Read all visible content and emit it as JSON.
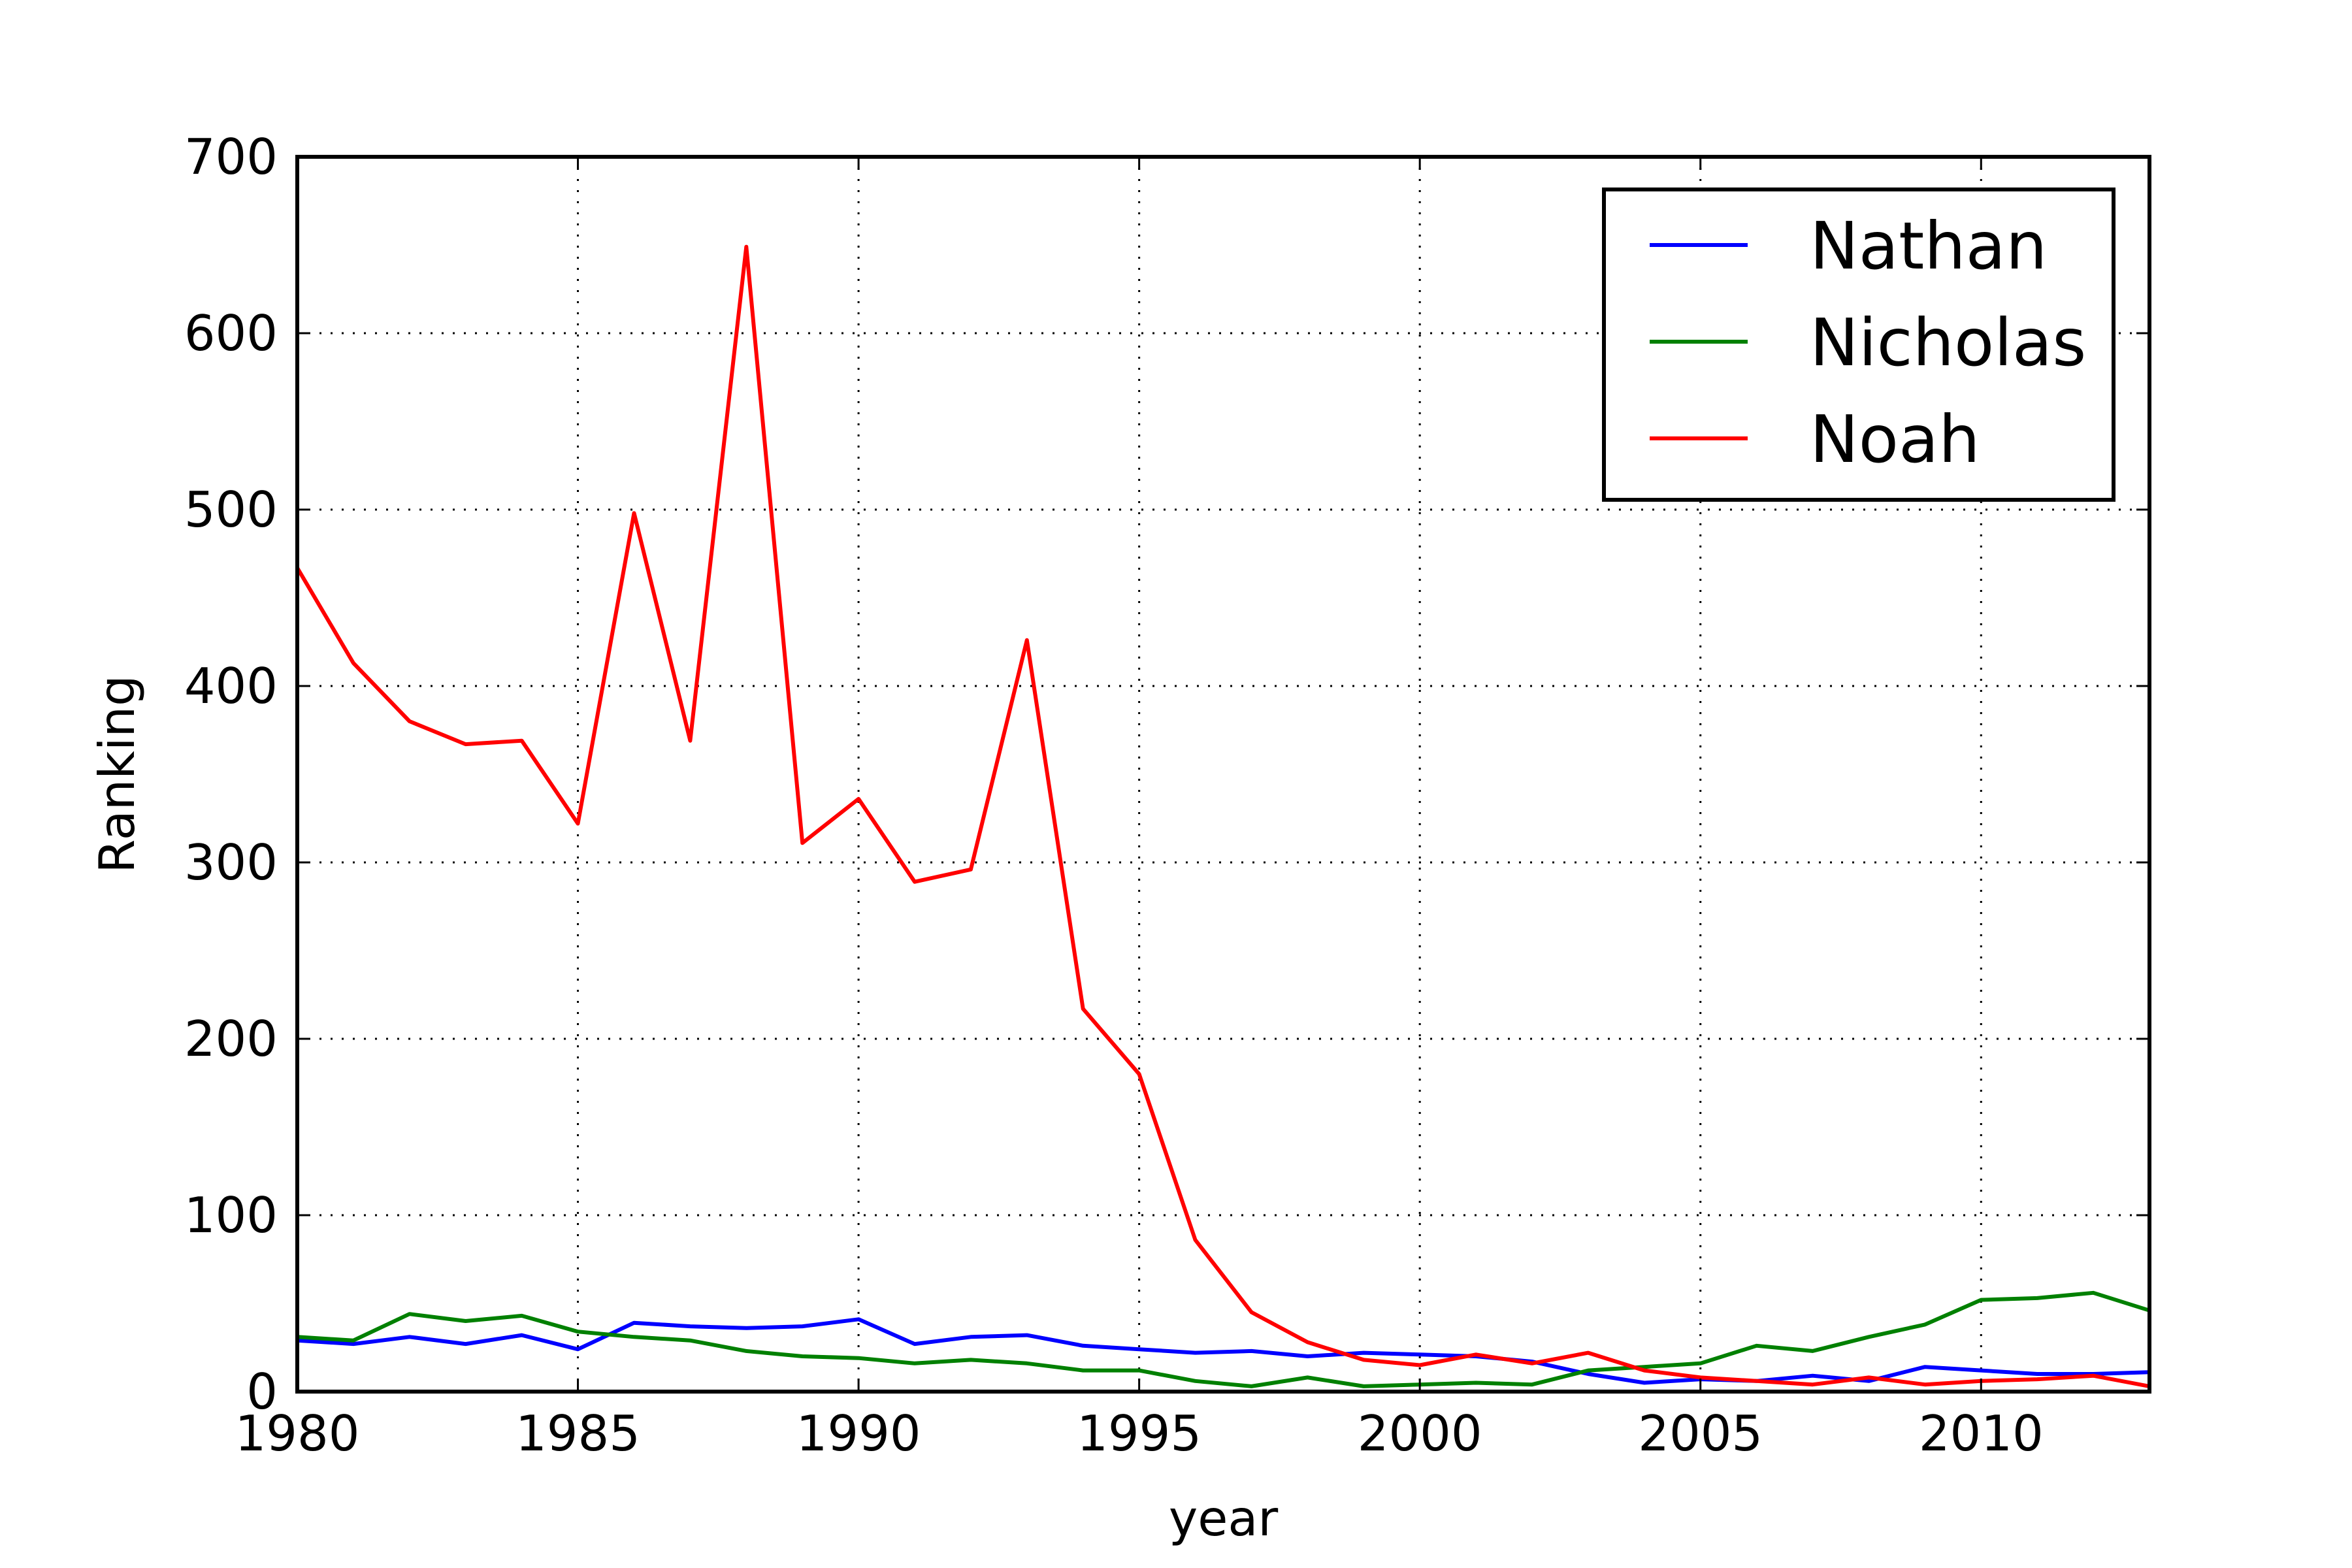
{
  "chart_data": {
    "type": "line",
    "title": "",
    "xlabel": "year",
    "ylabel": "Ranking",
    "xlim": [
      1980,
      2013
    ],
    "ylim": [
      0,
      700
    ],
    "xticks": [
      1980,
      1985,
      1990,
      1995,
      2000,
      2005,
      2010
    ],
    "yticks": [
      0,
      100,
      200,
      300,
      400,
      500,
      600,
      700
    ],
    "grid": true,
    "legend_position": "top-right",
    "x": [
      1980,
      1981,
      1982,
      1983,
      1984,
      1985,
      1986,
      1987,
      1988,
      1989,
      1990,
      1991,
      1992,
      1993,
      1994,
      1995,
      1996,
      1997,
      1998,
      1999,
      2000,
      2001,
      2002,
      2003,
      2004,
      2005,
      2006,
      2007,
      2008,
      2009,
      2010,
      2011,
      2012,
      2013
    ],
    "series": [
      {
        "name": "Nathan",
        "color": "#0000ff",
        "values": [
          29,
          27,
          31,
          27,
          32,
          24,
          39,
          37,
          36,
          37,
          41,
          27,
          31,
          32,
          26,
          24,
          22,
          23,
          20,
          22,
          21,
          20,
          17,
          10,
          5,
          7,
          6,
          9,
          6,
          14,
          12,
          10,
          10,
          11
        ]
      },
      {
        "name": "Nicholas",
        "color": "#008000",
        "values": [
          31,
          29,
          44,
          40,
          43,
          34,
          31,
          29,
          23,
          20,
          19,
          16,
          18,
          16,
          12,
          12,
          6,
          3,
          8,
          3,
          4,
          5,
          4,
          12,
          14,
          16,
          26,
          23,
          31,
          38,
          52,
          53,
          56,
          46
        ]
      },
      {
        "name": "Noah",
        "color": "#ff0000",
        "values": [
          467,
          413,
          380,
          367,
          369,
          322,
          498,
          369,
          649,
          311,
          336,
          289,
          296,
          426,
          217,
          180,
          86,
          45,
          28,
          18,
          15,
          21,
          16,
          22,
          12,
          8,
          6,
          4,
          8,
          4,
          6,
          7,
          9,
          3
        ]
      }
    ]
  }
}
